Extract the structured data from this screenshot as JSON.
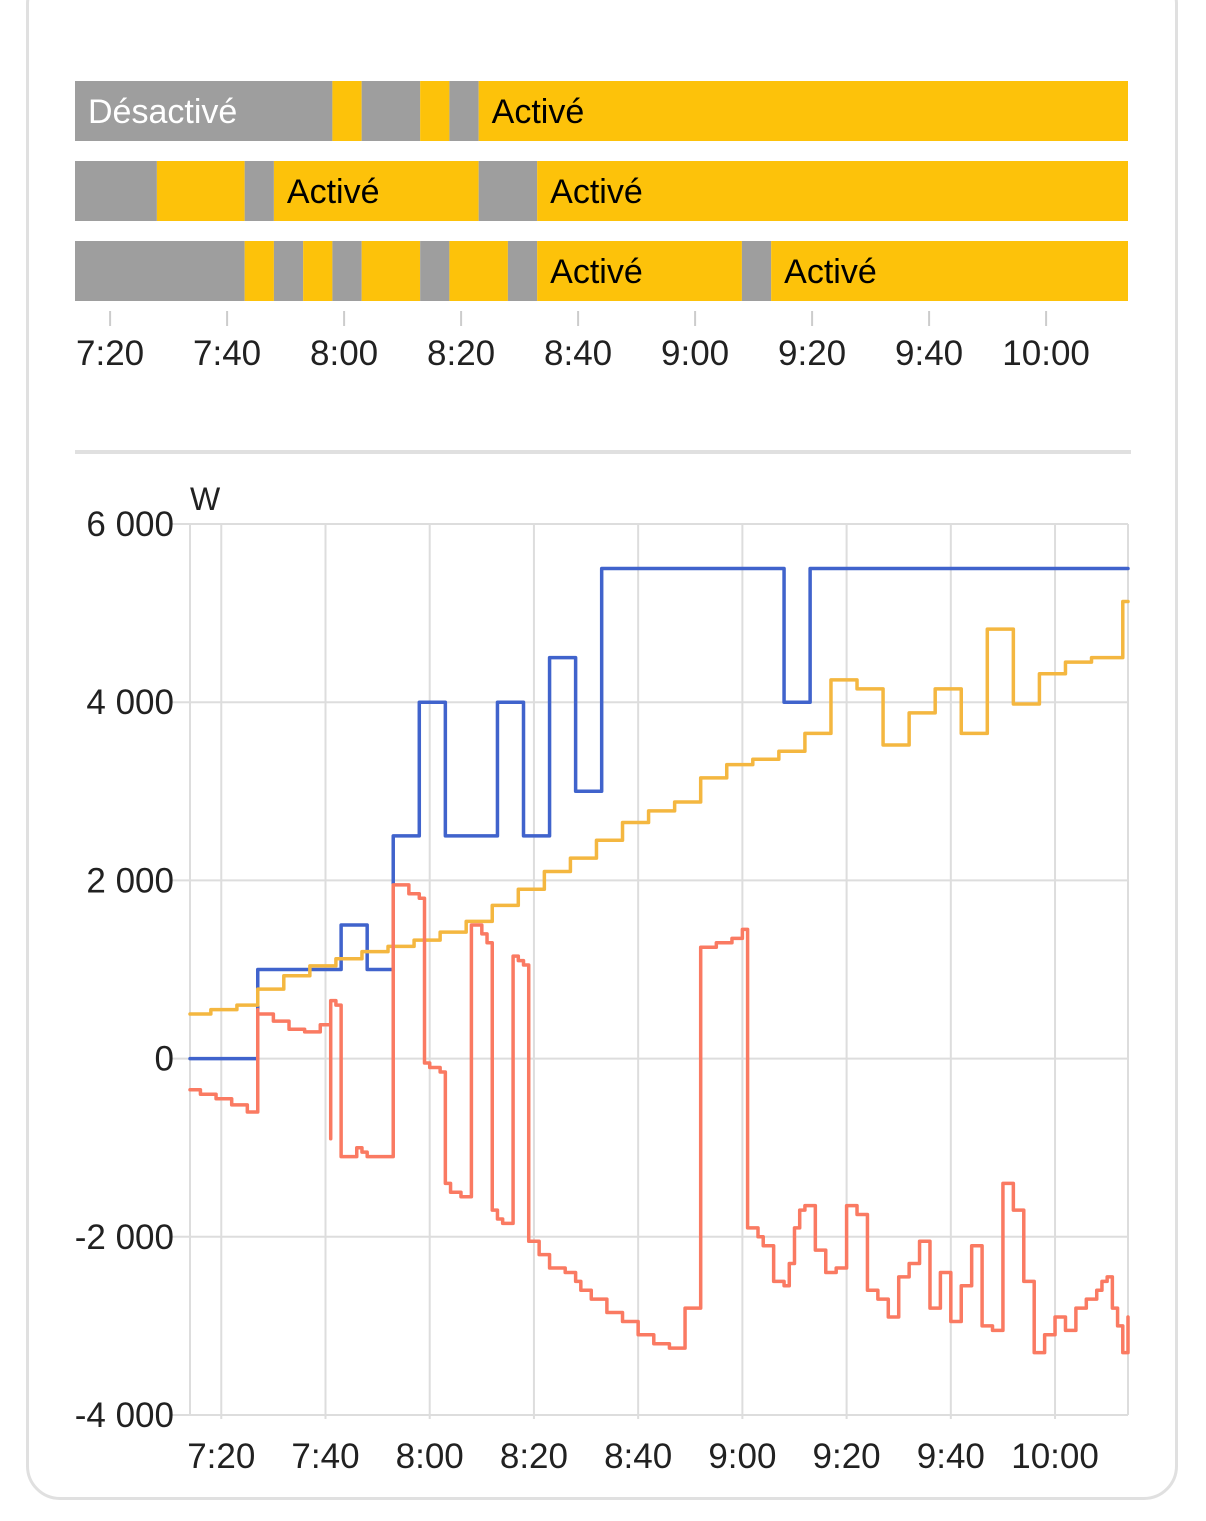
{
  "colors": {
    "on": "#fdc20a",
    "off": "#9e9e9e",
    "grid": "#dddddd",
    "divider": "#e0e0e0",
    "series": [
      "#4063cc",
      "#f4b740",
      "#fa7a62"
    ]
  },
  "timeline": {
    "x_range": [
      "7:14",
      "10:14"
    ],
    "tick_labels": [
      "7:20",
      "7:40",
      "8:00",
      "8:20",
      "8:40",
      "9:00",
      "9:20",
      "9:40",
      "10:00"
    ],
    "rows": [
      {
        "segments": [
          {
            "start": "7:14",
            "end": "7:58",
            "state": "off",
            "label": "Désactivé"
          },
          {
            "start": "7:58",
            "end": "8:03",
            "state": "on",
            "label": ""
          },
          {
            "start": "8:03",
            "end": "8:13",
            "state": "off",
            "label": ""
          },
          {
            "start": "8:13",
            "end": "8:18",
            "state": "on",
            "label": ""
          },
          {
            "start": "8:18",
            "end": "8:23",
            "state": "off",
            "label": ""
          },
          {
            "start": "8:23",
            "end": "10:14",
            "state": "on",
            "label": "Activé"
          }
        ]
      },
      {
        "segments": [
          {
            "start": "7:14",
            "end": "7:28",
            "state": "off",
            "label": ""
          },
          {
            "start": "7:28",
            "end": "7:43",
            "state": "on",
            "label": ""
          },
          {
            "start": "7:43",
            "end": "7:48",
            "state": "off",
            "label": ""
          },
          {
            "start": "7:48",
            "end": "8:23",
            "state": "on",
            "label": "Activé"
          },
          {
            "start": "8:23",
            "end": "8:33",
            "state": "off",
            "label": ""
          },
          {
            "start": "8:33",
            "end": "10:14",
            "state": "on",
            "label": "Activé"
          }
        ]
      },
      {
        "segments": [
          {
            "start": "7:14",
            "end": "7:43",
            "state": "off",
            "label": ""
          },
          {
            "start": "7:43",
            "end": "7:48",
            "state": "on",
            "label": ""
          },
          {
            "start": "7:48",
            "end": "7:53",
            "state": "off",
            "label": ""
          },
          {
            "start": "7:53",
            "end": "7:58",
            "state": "on",
            "label": ""
          },
          {
            "start": "7:58",
            "end": "8:03",
            "state": "off",
            "label": ""
          },
          {
            "start": "8:03",
            "end": "8:13",
            "state": "on",
            "label": ""
          },
          {
            "start": "8:13",
            "end": "8:18",
            "state": "off",
            "label": ""
          },
          {
            "start": "8:18",
            "end": "8:28",
            "state": "on",
            "label": ""
          },
          {
            "start": "8:28",
            "end": "8:33",
            "state": "off",
            "label": ""
          },
          {
            "start": "8:33",
            "end": "9:08",
            "state": "on",
            "label": "Activé"
          },
          {
            "start": "9:08",
            "end": "9:13",
            "state": "off",
            "label": ""
          },
          {
            "start": "9:13",
            "end": "10:14",
            "state": "on",
            "label": "Activé"
          }
        ]
      }
    ]
  },
  "chart_data": {
    "type": "line",
    "step": true,
    "xlabel": "",
    "ylabel": "W",
    "x_range": [
      "7:14",
      "10:14"
    ],
    "x_tick_labels": [
      "7:20",
      "7:40",
      "8:00",
      "8:20",
      "8:40",
      "9:00",
      "9:20",
      "9:40",
      "10:00"
    ],
    "ylim": [
      -4000,
      6000
    ],
    "y_ticks": [
      -4000,
      -2000,
      0,
      2000,
      4000,
      6000
    ],
    "y_tick_labels": [
      "-4 000",
      "-2 000",
      "0",
      "2 000",
      "4 000",
      "6 000"
    ],
    "grid": true,
    "series": [
      {
        "color": "#4063cc",
        "x": [
          "7:14",
          "7:27",
          "7:43",
          "7:48",
          "7:53",
          "7:58",
          "8:03",
          "8:13",
          "8:18",
          "8:23",
          "8:28",
          "8:33",
          "9:08",
          "9:13",
          "10:14"
        ],
        "values": [
          0,
          1000,
          1500,
          1000,
          2500,
          4000,
          2500,
          4000,
          2500,
          4500,
          3000,
          5500,
          4000,
          5500,
          5500
        ]
      },
      {
        "color": "#f4b740",
        "x": [
          "7:14",
          "7:18",
          "7:23",
          "7:27",
          "7:32",
          "7:37",
          "7:42",
          "7:47",
          "7:52",
          "7:57",
          "8:02",
          "8:07",
          "8:12",
          "8:17",
          "8:22",
          "8:27",
          "8:32",
          "8:37",
          "8:42",
          "8:47",
          "8:52",
          "8:57",
          "9:02",
          "9:07",
          "9:12",
          "9:17",
          "9:22",
          "9:27",
          "9:32",
          "9:37",
          "9:42",
          "9:47",
          "9:52",
          "9:57",
          "10:02",
          "10:07",
          "10:13",
          "10:14"
        ],
        "values": [
          500,
          550,
          600,
          780,
          930,
          1040,
          1120,
          1200,
          1260,
          1330,
          1420,
          1540,
          1720,
          1900,
          2100,
          2250,
          2450,
          2650,
          2780,
          2880,
          3150,
          3300,
          3360,
          3450,
          3650,
          4250,
          4150,
          3520,
          3880,
          4150,
          3650,
          4820,
          3980,
          4320,
          4450,
          4500,
          5130,
          5130
        ]
      },
      {
        "color": "#fa7a62",
        "x": [
          "7:14",
          "7:16",
          "7:19",
          "7:22",
          "7:25",
          "7:27",
          "7:27",
          "7:30",
          "7:33",
          "7:36",
          "7:39",
          "7:41",
          "7:41",
          "7:42",
          "7:43",
          "7:46",
          "7:47",
          "7:48",
          "7:50",
          "7:53",
          "7:56",
          "7:58",
          "7:59",
          "8:00",
          "8:02",
          "8:03",
          "8:04",
          "8:06",
          "8:08",
          "8:10",
          "8:11",
          "8:12",
          "8:13",
          "8:14",
          "8:16",
          "8:17",
          "8:18",
          "8:19",
          "8:21",
          "8:23",
          "8:26",
          "8:28",
          "8:29",
          "8:31",
          "8:34",
          "8:37",
          "8:40",
          "8:43",
          "8:46",
          "8:49",
          "8:52",
          "8:55",
          "8:58",
          "9:00",
          "9:01",
          "9:03",
          "9:04",
          "9:06",
          "9:08",
          "9:09",
          "9:10",
          "9:11",
          "9:12",
          "9:14",
          "9:16",
          "9:18",
          "9:20",
          "9:22",
          "9:24",
          "9:26",
          "9:28",
          "9:30",
          "9:32",
          "9:34",
          "9:36",
          "9:38",
          "9:40",
          "9:42",
          "9:44",
          "9:46",
          "9:48",
          "9:50",
          "9:52",
          "9:54",
          "9:56",
          "9:58",
          "10:00",
          "10:02",
          "10:04",
          "10:06",
          "10:08",
          "10:09",
          "10:10",
          "10:11",
          "10:12",
          "10:13",
          "10:14"
        ],
        "values": [
          -350,
          -400,
          -450,
          -520,
          -600,
          550,
          500,
          420,
          330,
          300,
          380,
          -900,
          650,
          600,
          -1100,
          -1000,
          -1050,
          -1100,
          -1100,
          1950,
          1850,
          1800,
          -50,
          -100,
          -150,
          -1400,
          -1500,
          -1550,
          1500,
          1400,
          1300,
          -1700,
          -1800,
          -1850,
          1150,
          1100,
          1050,
          -2050,
          -2200,
          -2350,
          -2400,
          -2500,
          -2600,
          -2700,
          -2850,
          -2950,
          -3100,
          -3200,
          -3250,
          -2800,
          1250,
          1300,
          1350,
          1450,
          -1900,
          -2000,
          -2100,
          -2500,
          -2550,
          -2300,
          -1900,
          -1700,
          -1650,
          -2150,
          -2400,
          -2350,
          -1650,
          -1750,
          -2600,
          -2700,
          -2900,
          -2450,
          -2300,
          -2050,
          -2800,
          -2400,
          -2950,
          -2550,
          -2100,
          -3000,
          -3050,
          -1400,
          -1700,
          -2500,
          -3300,
          -3100,
          -2900,
          -3050,
          -2800,
          -2700,
          -2600,
          -2500,
          -2450,
          -2800,
          -3000,
          -3300,
          -2900
        ]
      }
    ]
  }
}
